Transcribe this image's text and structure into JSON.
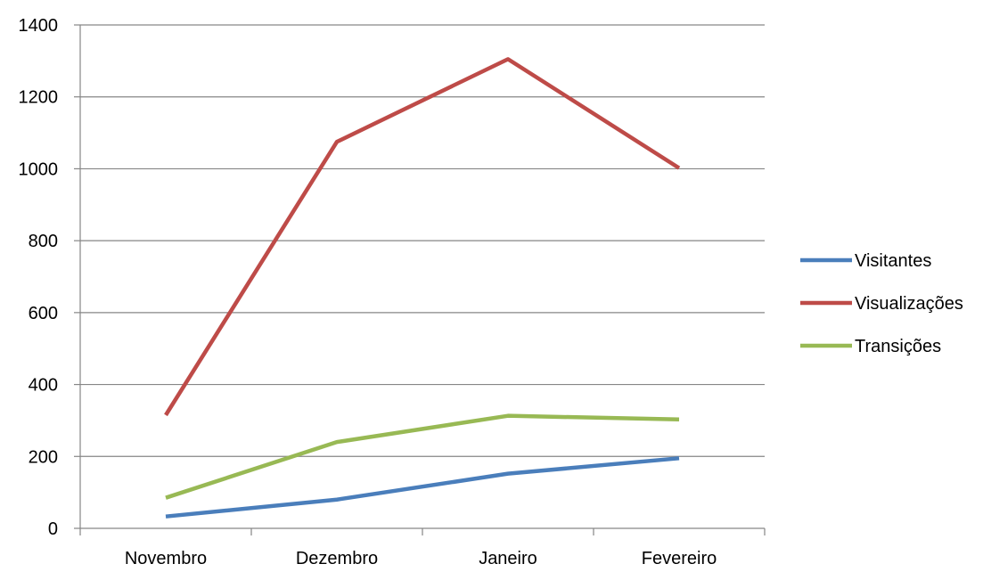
{
  "chart_data": {
    "type": "line",
    "categories": [
      "Novembro",
      "Dezembro",
      "Janeiro",
      "Fevereiro"
    ],
    "series": [
      {
        "name": "Visitantes",
        "values": [
          33,
          80,
          152,
          195
        ],
        "color": "#4a7ebb"
      },
      {
        "name": "Visualizações",
        "values": [
          315,
          1075,
          1305,
          1002
        ],
        "color": "#be4b48"
      },
      {
        "name": "Transições",
        "values": [
          85,
          240,
          313,
          303
        ],
        "color": "#98b954"
      }
    ],
    "ylim": [
      0,
      1400
    ],
    "yticks": [
      0,
      200,
      400,
      600,
      800,
      1000,
      1200,
      1400
    ],
    "grid": true,
    "legend_position": "right",
    "colors": {
      "grid": "#868686",
      "axis": "#868686"
    }
  }
}
